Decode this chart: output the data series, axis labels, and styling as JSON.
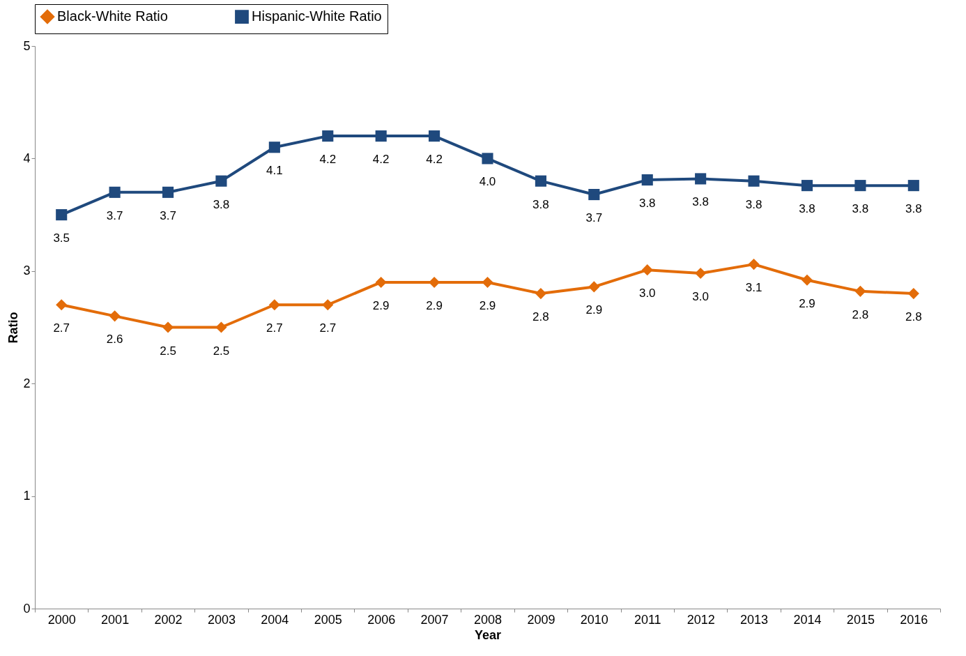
{
  "chart_data": {
    "type": "line",
    "xlabel": "Year",
    "ylabel": "Ratio",
    "categories": [
      "2000",
      "2001",
      "2002",
      "2003",
      "2004",
      "2005",
      "2006",
      "2007",
      "2008",
      "2009",
      "2010",
      "2011",
      "2012",
      "2013",
      "2014",
      "2015",
      "2016"
    ],
    "series": [
      {
        "name": "Black-White Ratio",
        "color": "#e36c09",
        "marker": "diamond",
        "values": [
          2.7,
          2.6,
          2.5,
          2.5,
          2.7,
          2.7,
          2.9,
          2.9,
          2.9,
          2.8,
          2.86,
          3.01,
          2.98,
          3.06,
          2.92,
          2.82,
          2.8
        ],
        "value_labels": [
          "2.7",
          "2.6",
          "2.5",
          "2.5",
          "2.7",
          "2.7",
          "2.9",
          "2.9",
          "2.9",
          "2.8",
          "2.9",
          "3.0",
          "3.0",
          "3.1",
          "2.9",
          "2.8",
          "2.8"
        ]
      },
      {
        "name": "Hispanic-White Ratio",
        "color": "#1f497d",
        "marker": "square",
        "values": [
          3.5,
          3.7,
          3.7,
          3.8,
          4.1,
          4.2,
          4.2,
          4.2,
          4.0,
          3.8,
          3.68,
          3.81,
          3.82,
          3.8,
          3.76,
          3.76,
          3.76
        ],
        "value_labels": [
          "3.5",
          "3.7",
          "3.7",
          "3.8",
          "4.1",
          "4.2",
          "4.2",
          "4.2",
          "4.0",
          "3.8",
          "3.7",
          "3.8",
          "3.8",
          "3.8",
          "3.8",
          "3.8",
          "3.8"
        ]
      }
    ],
    "ylim": [
      0,
      5
    ],
    "yticks": [
      0,
      1,
      2,
      3,
      4,
      5
    ],
    "grid": false,
    "legend": "top",
    "line_style": "solid"
  }
}
